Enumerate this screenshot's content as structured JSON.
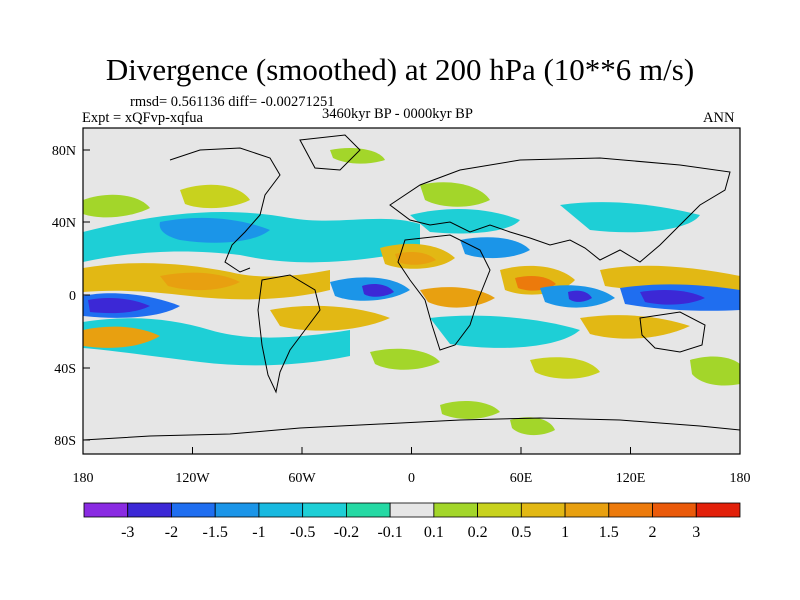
{
  "title": "Divergence (smoothed) at 200 hPa (10**6 m/s)",
  "stats_line": "rmsd= 0.561136 diff= -0.00271251",
  "experiment": "Expt = xQFvp-xqfua",
  "period": "3460kyr BP - 0000kyr BP",
  "season": "ANN",
  "x_ticks": [
    "180",
    "120W",
    "60W",
    "0",
    "60E",
    "120E",
    "180"
  ],
  "y_ticks": [
    "80N",
    "40N",
    "0",
    "40S",
    "80S"
  ],
  "colorbar": {
    "colors": [
      "#8a2be2",
      "#3c28d6",
      "#1f6ef0",
      "#1b95e8",
      "#18b9e0",
      "#1ecfd6",
      "#25d9a4",
      "#e6e6e6",
      "#a3d62a",
      "#c8d21e",
      "#e2b814",
      "#e8a010",
      "#ec7a0c",
      "#ea5a0a",
      "#e2200a"
    ],
    "labels": [
      "-3",
      "-2",
      "-1.5",
      "-1",
      "-0.5",
      "-0.2",
      "-0.1",
      "0.1",
      "0.2",
      "0.5",
      "1",
      "1.5",
      "2",
      "3"
    ]
  }
}
